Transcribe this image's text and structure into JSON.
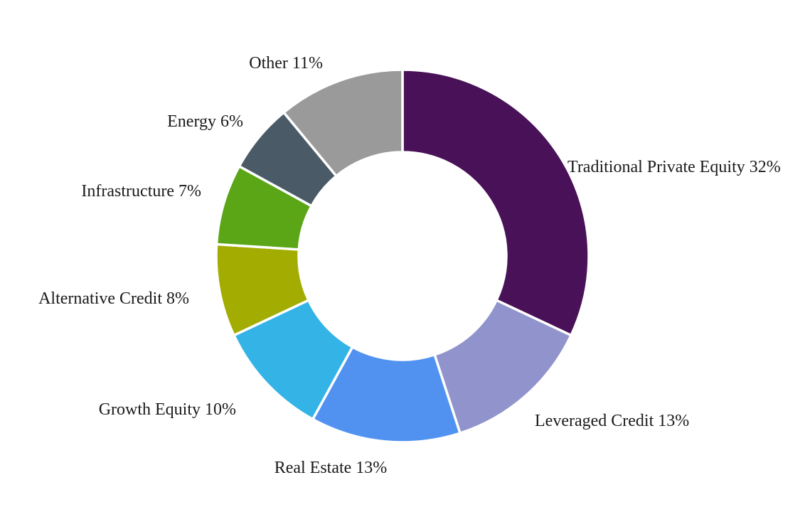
{
  "chart_data": {
    "type": "pie",
    "donut": true,
    "title": "",
    "start_angle_deg": 0,
    "direction": "clockwise",
    "slices": [
      {
        "label": "Traditional Private Equity 32%",
        "name": "Traditional Private Equity",
        "value": 32,
        "color": "#491157"
      },
      {
        "label": "Leveraged Credit 13%",
        "name": "Leveraged Credit",
        "value": 13,
        "color": "#9194CC"
      },
      {
        "label": "Real Estate 13%",
        "name": "Real Estate",
        "value": 13,
        "color": "#5192F0"
      },
      {
        "label": "Growth Equity 10%",
        "name": "Growth Equity",
        "value": 10,
        "color": "#34B3E6"
      },
      {
        "label": "Alternative Credit 8%",
        "name": "Alternative Credit",
        "value": 8,
        "color": "#A3AD01"
      },
      {
        "label": "Infrastructure 7%",
        "name": "Infrastructure",
        "value": 7,
        "color": "#5BA617"
      },
      {
        "label": "Energy 6%",
        "name": "Energy",
        "value": 6,
        "color": "#4A5A66"
      },
      {
        "label": "Other 11%",
        "name": "Other",
        "value": 11,
        "color": "#9A9A9A"
      }
    ]
  }
}
